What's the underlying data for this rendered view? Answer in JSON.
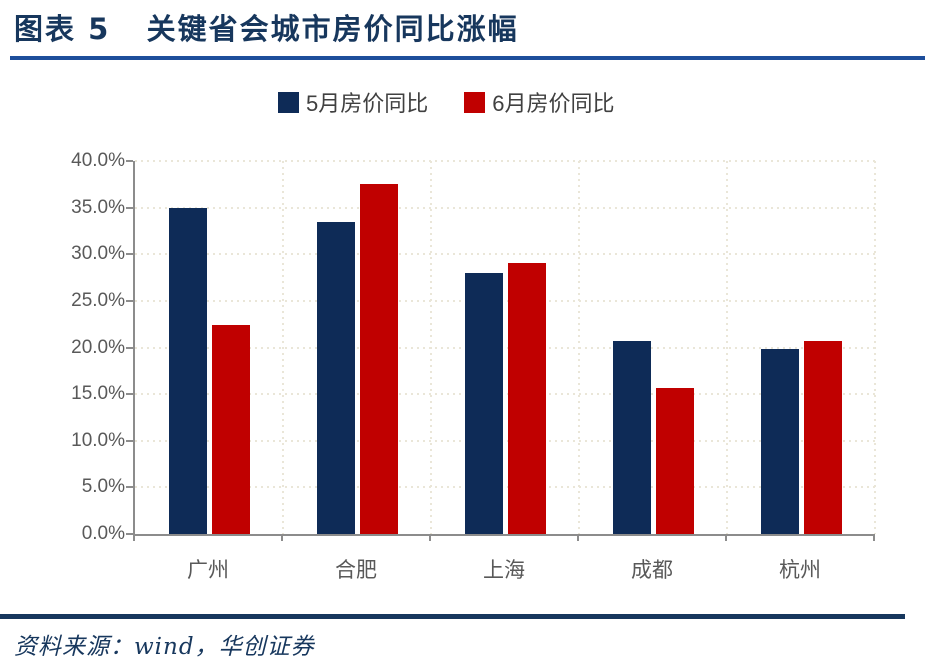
{
  "header": {
    "title": "图表 5   关键省会城市房价同比涨幅"
  },
  "footer": {
    "source": "资料来源：wind，华创证券"
  },
  "colors": {
    "title_navy": "#17375D",
    "top_rule_blue": "#1D4E9B",
    "bar_blue": "#0E2B57",
    "bar_red": "#C00000",
    "axis_gray": "#8C8C8C",
    "label_gray": "#595959",
    "grid_tan": "#EAE6D8",
    "legend_text": "#404040"
  },
  "chart_data": {
    "type": "bar",
    "title": "关键省会城市房价同比涨幅",
    "categories": [
      "广州",
      "合肥",
      "上海",
      "成都",
      "杭州"
    ],
    "series": [
      {
        "name": "5月房价同比",
        "color": "#0E2B57",
        "values": [
          35.0,
          33.5,
          28.0,
          20.7,
          19.8
        ]
      },
      {
        "name": "6月房价同比",
        "color": "#C00000",
        "values": [
          22.4,
          37.5,
          29.1,
          15.7,
          20.7
        ]
      }
    ],
    "xlabel": "",
    "ylabel": "",
    "ylim": [
      0,
      40
    ],
    "ytick_step": 5,
    "ytick_labels": [
      "0.0%",
      "5.0%",
      "10.0%",
      "15.0%",
      "20.0%",
      "25.0%",
      "30.0%",
      "35.0%",
      "40.0%"
    ],
    "grid": true,
    "legend_position": "top"
  }
}
